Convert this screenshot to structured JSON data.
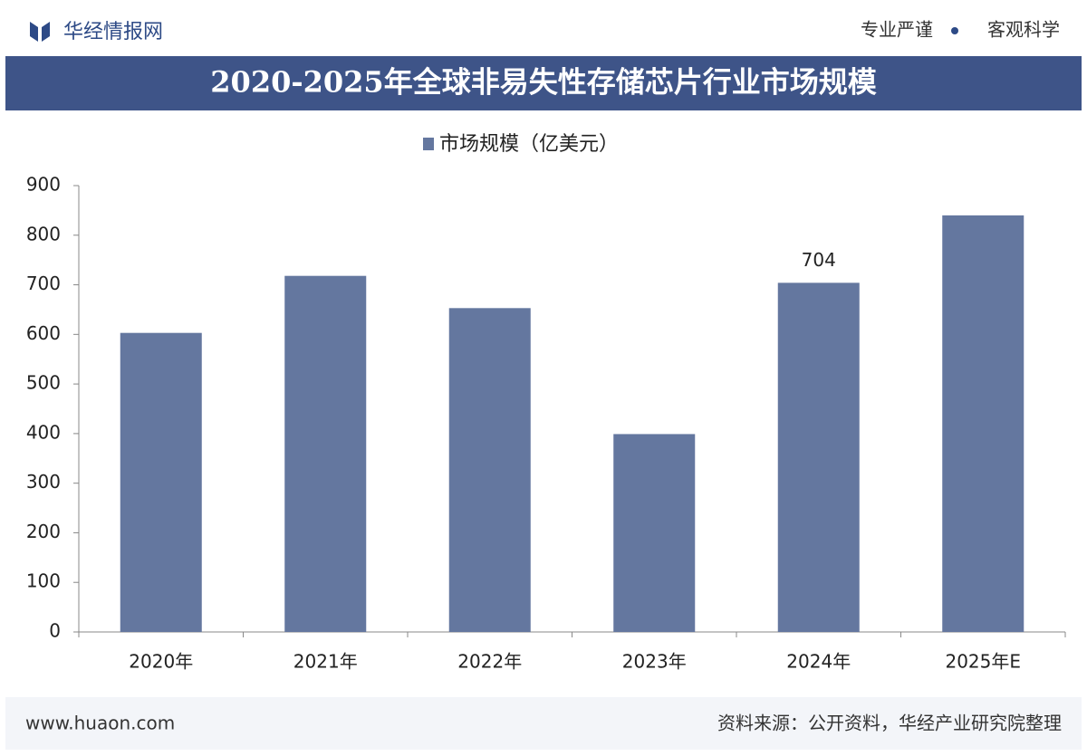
{
  "header": {
    "logo": "华经情报网",
    "slogan_left": "专业严谨",
    "slogan_right": "客观科学"
  },
  "chart_data": {
    "type": "bar",
    "title": "2020-2025年全球非易失性存储芯片行业市场规模",
    "categories": [
      "2020年",
      "2021年",
      "2022年",
      "2023年",
      "2024年",
      "2025年E"
    ],
    "series": [
      {
        "name": "市场规模（亿美元）",
        "color": "#64779f",
        "values": [
          603,
          718,
          653,
          399,
          704,
          840
        ],
        "value_labels": [
          null,
          null,
          null,
          null,
          "704",
          null
        ]
      }
    ],
    "ylim": [
      0,
      900
    ],
    "yticks": [
      0,
      100,
      200,
      300,
      400,
      500,
      600,
      700,
      800,
      900
    ]
  },
  "footer": {
    "url": "www.huaon.com",
    "source": "资料来源：公开资料，华经产业研究院整理"
  }
}
